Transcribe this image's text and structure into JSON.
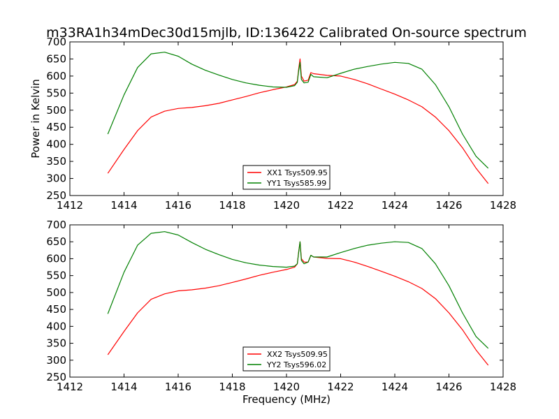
{
  "title": "m33RA1h34mDec30d15mjlb, ID:136422 Calibrated On-source spectrum",
  "colors": {
    "xx": "#ff0000",
    "yy": "#008000",
    "frame": "#000000"
  },
  "chart_data": [
    {
      "type": "line",
      "ylabel": "Power in Kelvin",
      "xlabel": "",
      "xlim": [
        1412,
        1428
      ],
      "ylim": [
        250,
        700
      ],
      "xticks": [
        1412,
        1414,
        1416,
        1418,
        1420,
        1422,
        1424,
        1426,
        1428
      ],
      "yticks": [
        250,
        300,
        350,
        400,
        450,
        500,
        550,
        600,
        650,
        700
      ],
      "legend_placement": "lower-center",
      "series": [
        {
          "name": "XX1 Tsys509.95",
          "color": "#ff0000",
          "x": [
            1413.4,
            1414.0,
            1414.5,
            1415.0,
            1415.5,
            1416.0,
            1416.5,
            1417.0,
            1417.5,
            1418.0,
            1418.5,
            1419.0,
            1419.5,
            1420.0,
            1420.3,
            1420.4,
            1420.45,
            1420.5,
            1420.55,
            1420.65,
            1420.8,
            1420.9,
            1421.0,
            1421.5,
            1422.0,
            1422.5,
            1423.0,
            1423.5,
            1424.0,
            1424.5,
            1425.0,
            1425.5,
            1426.0,
            1426.5,
            1427.0,
            1427.45
          ],
          "values": [
            315,
            385,
            440,
            480,
            497,
            505,
            508,
            513,
            520,
            530,
            540,
            551,
            560,
            568,
            575,
            585,
            620,
            650,
            600,
            585,
            588,
            610,
            607,
            602,
            600,
            590,
            577,
            562,
            547,
            530,
            510,
            480,
            440,
            390,
            330,
            285
          ]
        },
        {
          "name": "YY1 Tsys585.99",
          "color": "#008000",
          "x": [
            1413.4,
            1414.0,
            1414.5,
            1415.0,
            1415.5,
            1416.0,
            1416.5,
            1417.0,
            1417.5,
            1418.0,
            1418.5,
            1419.0,
            1419.5,
            1420.0,
            1420.3,
            1420.4,
            1420.45,
            1420.5,
            1420.55,
            1420.65,
            1420.8,
            1420.9,
            1421.0,
            1421.5,
            1422.0,
            1422.5,
            1423.0,
            1423.5,
            1424.0,
            1424.5,
            1425.0,
            1425.5,
            1426.0,
            1426.5,
            1427.0,
            1427.45
          ],
          "values": [
            430,
            545,
            625,
            665,
            670,
            658,
            635,
            617,
            603,
            590,
            580,
            573,
            568,
            567,
            572,
            582,
            615,
            640,
            590,
            580,
            582,
            605,
            598,
            595,
            608,
            620,
            628,
            635,
            640,
            637,
            620,
            575,
            510,
            430,
            365,
            330
          ]
        }
      ]
    },
    {
      "type": "line",
      "ylabel": "",
      "xlabel": "Frequency (MHz)",
      "xlim": [
        1412,
        1428
      ],
      "ylim": [
        250,
        700
      ],
      "xticks": [
        1412,
        1414,
        1416,
        1418,
        1420,
        1422,
        1424,
        1426,
        1428
      ],
      "yticks": [
        250,
        300,
        350,
        400,
        450,
        500,
        550,
        600,
        650,
        700
      ],
      "legend_placement": "lower-center",
      "series": [
        {
          "name": "XX2 Tsys509.95",
          "color": "#ff0000",
          "x": [
            1413.4,
            1414.0,
            1414.5,
            1415.0,
            1415.5,
            1416.0,
            1416.5,
            1417.0,
            1417.5,
            1418.0,
            1418.5,
            1419.0,
            1419.5,
            1420.0,
            1420.3,
            1420.4,
            1420.45,
            1420.5,
            1420.55,
            1420.65,
            1420.8,
            1420.9,
            1421.0,
            1421.5,
            1422.0,
            1422.5,
            1423.0,
            1423.5,
            1424.0,
            1424.5,
            1425.0,
            1425.5,
            1426.0,
            1426.5,
            1427.0,
            1427.45
          ],
          "values": [
            316,
            385,
            440,
            480,
            496,
            505,
            508,
            513,
            520,
            530,
            540,
            551,
            560,
            568,
            575,
            585,
            620,
            650,
            600,
            590,
            590,
            610,
            605,
            601,
            600,
            590,
            577,
            563,
            548,
            532,
            512,
            482,
            440,
            390,
            330,
            285
          ]
        },
        {
          "name": "YY2 Tsys596.02",
          "color": "#008000",
          "x": [
            1413.4,
            1414.0,
            1414.5,
            1415.0,
            1415.5,
            1416.0,
            1416.5,
            1417.0,
            1417.5,
            1418.0,
            1418.5,
            1419.0,
            1419.5,
            1420.0,
            1420.3,
            1420.4,
            1420.45,
            1420.5,
            1420.55,
            1420.65,
            1420.8,
            1420.9,
            1421.0,
            1421.5,
            1422.0,
            1422.5,
            1423.0,
            1423.5,
            1424.0,
            1424.5,
            1425.0,
            1425.5,
            1426.0,
            1426.5,
            1427.0,
            1427.45
          ],
          "values": [
            437,
            560,
            640,
            675,
            680,
            670,
            648,
            628,
            612,
            598,
            588,
            581,
            577,
            575,
            578,
            585,
            618,
            650,
            595,
            585,
            590,
            610,
            605,
            605,
            618,
            630,
            640,
            646,
            650,
            648,
            630,
            585,
            520,
            440,
            370,
            335
          ]
        }
      ]
    }
  ]
}
